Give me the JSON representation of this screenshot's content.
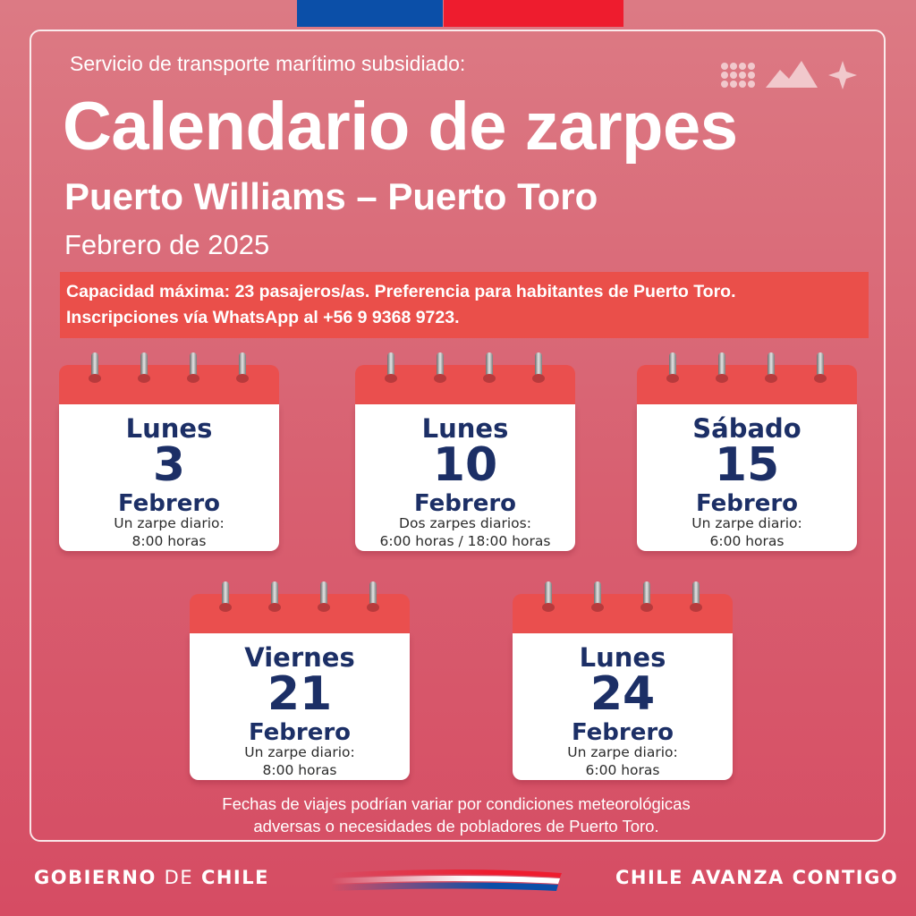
{
  "header": {
    "subtitle": "Servicio de transporte marítimo subsidiado:",
    "title": "Calendario de zarpes",
    "route": "Puerto Williams – Puerto Toro",
    "month": "Febrero de 2025"
  },
  "notice": {
    "line1": "Capacidad máxima: 23 pasajeros/as. Preferencia para habitantes de Puerto Toro.",
    "line2": "Inscripciones vía WhatsApp al +56 9 9368 9723."
  },
  "calendars": [
    {
      "day": "Lunes",
      "number": "3",
      "month": "Febrero",
      "note1": "Un zarpe diario:",
      "note2": "8:00 horas"
    },
    {
      "day": "Lunes",
      "number": "10",
      "month": "Febrero",
      "note1": "Dos zarpes diarios:",
      "note2": "6:00 horas / 18:00 horas"
    },
    {
      "day": "Sábado",
      "number": "15",
      "month": "Febrero",
      "note1": "Un zarpe diario:",
      "note2": "6:00 horas"
    },
    {
      "day": "Viernes",
      "number": "21",
      "month": "Febrero",
      "note1": "Un zarpe diario:",
      "note2": "8:00 horas"
    },
    {
      "day": "Lunes",
      "number": "24",
      "month": "Febrero",
      "note1": "Un zarpe diario:",
      "note2": "6:00 horas"
    }
  ],
  "disclaimer": {
    "line1": "Fechas de viajes podrían variar por condiciones meteorológicas",
    "line2": "adversas o necesidades de pobladores de Puerto Toro."
  },
  "footer": {
    "left_bold1": "GOBIERNO",
    "left_light": "DE",
    "left_bold2": "CHILE",
    "right": "CHILE AVANZA CONTIGO"
  },
  "colors": {
    "background": "#d85f70",
    "notice_bg": "#ea4f4a",
    "calendar_top": "#ea4f4e",
    "calendar_text": "#1c2f66",
    "flag_blue": "#0b4fa8",
    "flag_red": "#ee1c2e"
  },
  "icons": {
    "decoration": "dots-mountains-star-icon",
    "ring": "calendar-ring-icon",
    "swoosh": "flag-swoosh-icon"
  }
}
